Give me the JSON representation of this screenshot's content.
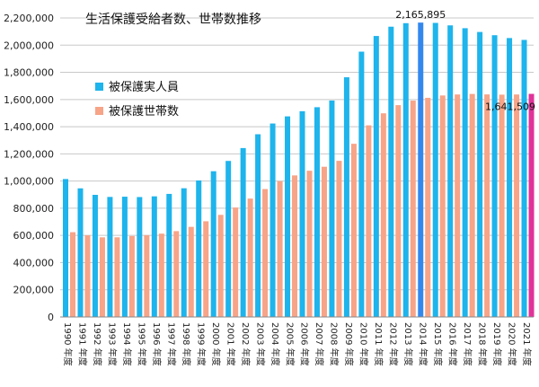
{
  "chart_data": {
    "type": "bar",
    "title": "生活保護受給者数、世帯数推移",
    "categories": [
      "1990 年度",
      "1991 年度",
      "1992 年度",
      "1993 年度",
      "1994 年度",
      "1995 年度",
      "1996 年度",
      "1997 年度",
      "1998 年度",
      "1999 年度",
      "2000 年度",
      "2001 年度",
      "2002 年度",
      "2003 年度",
      "2004 年度",
      "2005 年度",
      "2006 年度",
      "2007 年度",
      "2008 年度",
      "2009 年度",
      "2010 年度",
      "2011 年度",
      "2012 年度",
      "2013 年度",
      "2014 年度",
      "2015 年度",
      "2016 年度",
      "2017 年度",
      "2018 年度",
      "2019 年度",
      "2020 年度",
      "2021 年度"
    ],
    "series": [
      {
        "name": "被保護実人員",
        "color": "#1eb4ec",
        "values": [
          1014842,
          946374,
          898499,
          883112,
          884912,
          882229,
          887450,
          905589,
          946994,
          1004472,
          1072241,
          1148088,
          1242723,
          1344327,
          1423388,
          1475838,
          1513892,
          1543321,
          1592620,
          1763572,
          1952063,
          2067244,
          2135708,
          2161612,
          2165895,
          2163685,
          2145438,
          2124631,
          2096838,
          2073117,
          2052114,
          2038557
        ]
      },
      {
        "name": "被保護世帯数",
        "color": "#f7a488",
        "values": [
          623755,
          600697,
          585972,
          586106,
          595407,
          601925,
          613106,
          631488,
          663060,
          704055,
          751303,
          805169,
          870931,
          941270,
          998887,
          1041508,
          1075820,
          1105275,
          1148766,
          1274231,
          1410049,
          1498375,
          1558510,
          1591846,
          1612340,
          1629743,
          1637045,
          1640854,
          1637422,
          1635724,
          1636959,
          1641509
        ]
      }
    ],
    "highlight": [
      {
        "series": 0,
        "index": 24,
        "color": "#3388ee"
      },
      {
        "series": 1,
        "index": 31,
        "color": "#e0339a"
      }
    ],
    "annotations": [
      "2,165,895",
      "1,641,509"
    ],
    "ylim": [
      0,
      2200000
    ],
    "yticks": [
      "0",
      "200,000",
      "400,000",
      "600,000",
      "800,000",
      "1,000,000",
      "1,200,000",
      "1,400,000",
      "1,600,000",
      "1,800,000",
      "2,000,000",
      "2,200,000"
    ],
    "grid": true,
    "legend_position": "upper-left"
  }
}
